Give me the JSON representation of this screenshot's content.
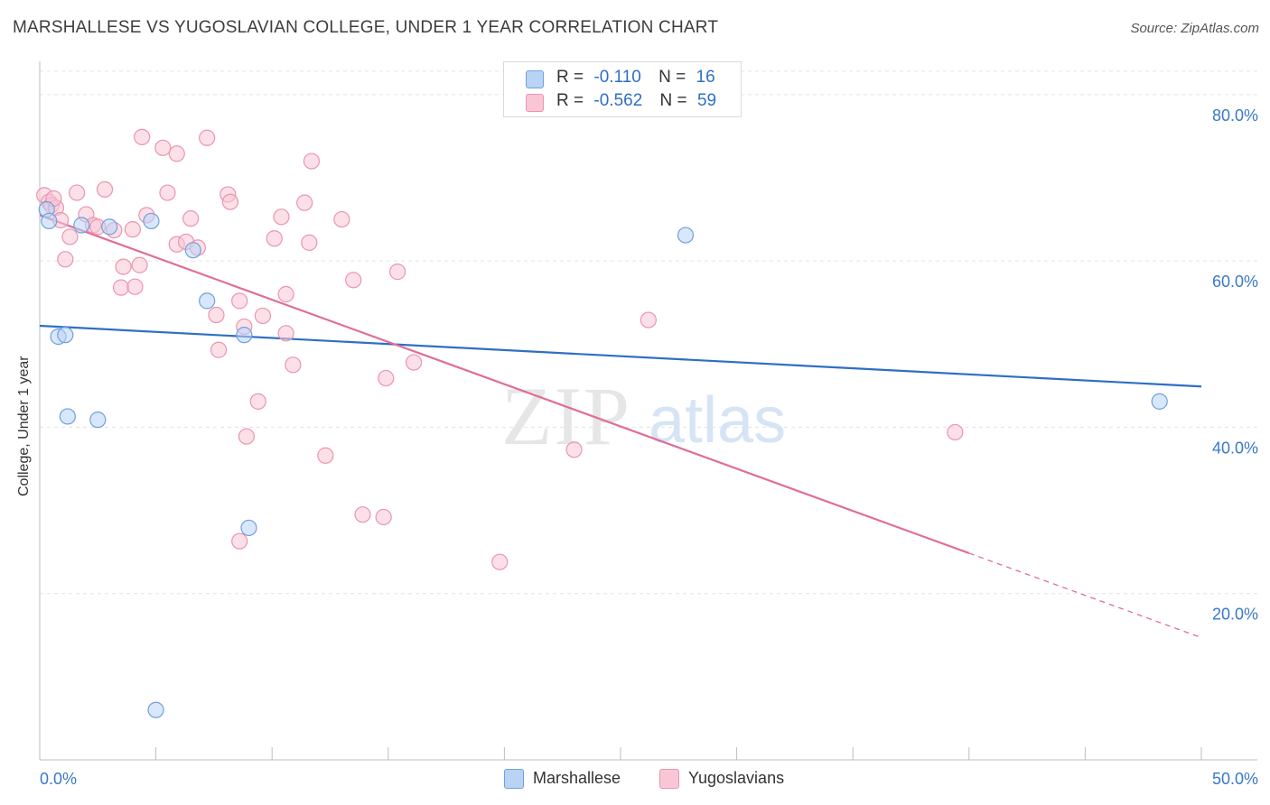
{
  "header": {
    "title": "MARSHALLESE VS YUGOSLAVIAN COLLEGE, UNDER 1 YEAR CORRELATION CHART",
    "source": "Source: ZipAtlas.com"
  },
  "watermark": {
    "zip": "ZIP",
    "atlas": "atlas"
  },
  "legend": {
    "items": [
      {
        "r_label": "R =",
        "r_value": "-0.110",
        "n_label": "N =",
        "n_value": "16"
      },
      {
        "r_label": "R =",
        "r_value": "-0.562",
        "n_label": "N =",
        "n_value": "59"
      }
    ]
  },
  "bottom_legend": {
    "series1": "Marshallese",
    "series2": "Yugoslavians"
  },
  "colors": {
    "marshallese_fill": "#b9d3f5",
    "marshallese_stroke": "#6fa0dc",
    "marshallese_line": "#2f6fc4",
    "yugoslavian_fill": "#f9c6d6",
    "yugoslavian_stroke": "#eb94b0",
    "yugoslavian_line": "#e06e96",
    "axis_label": "#3a78c9"
  },
  "chart_data": {
    "type": "scatter",
    "title": "MARSHALLESE VS YUGOSLAVIAN COLLEGE, UNDER 1 YEAR CORRELATION CHART",
    "xlabel": "",
    "ylabel": "College, Under 1 year",
    "xlim": [
      0,
      50
    ],
    "ylim": [
      0,
      84
    ],
    "x_tick_labels": [
      "0.0%",
      "50.0%"
    ],
    "y_ticks": [
      20,
      40,
      60,
      80
    ],
    "y_tick_labels": [
      "20.0%",
      "40.0%",
      "60.0%",
      "80.0%"
    ],
    "grid": true,
    "legend_position": "top-center",
    "series": [
      {
        "name": "Marshallese",
        "points": [
          [
            0.3,
            66.2
          ],
          [
            0.4,
            64.8
          ],
          [
            1.8,
            64.3
          ],
          [
            3.0,
            64.1
          ],
          [
            4.8,
            64.8
          ],
          [
            0.8,
            50.9
          ],
          [
            1.1,
            51.1
          ],
          [
            1.2,
            41.3
          ],
          [
            2.5,
            40.9
          ],
          [
            6.6,
            61.3
          ],
          [
            7.2,
            55.2
          ],
          [
            8.8,
            51.1
          ],
          [
            9.0,
            27.9
          ],
          [
            5.0,
            6.0
          ],
          [
            27.8,
            63.1
          ],
          [
            48.2,
            43.1
          ]
        ],
        "trend": {
          "x": [
            0,
            50
          ],
          "y": [
            52.2,
            44.9
          ],
          "dashed_from": null
        }
      },
      {
        "name": "Yugoslavians",
        "points": [
          [
            0.2,
            67.9
          ],
          [
            0.4,
            67.1
          ],
          [
            0.5,
            66.7
          ],
          [
            0.7,
            66.4
          ],
          [
            0.9,
            64.9
          ],
          [
            0.6,
            67.5
          ],
          [
            1.1,
            60.2
          ],
          [
            1.3,
            62.9
          ],
          [
            1.6,
            68.2
          ],
          [
            2.0,
            65.6
          ],
          [
            2.3,
            64.3
          ],
          [
            2.5,
            64.1
          ],
          [
            2.8,
            68.6
          ],
          [
            3.2,
            63.7
          ],
          [
            3.5,
            56.8
          ],
          [
            4.0,
            63.8
          ],
          [
            3.6,
            59.3
          ],
          [
            4.1,
            56.9
          ],
          [
            4.3,
            59.5
          ],
          [
            4.6,
            65.5
          ],
          [
            4.4,
            74.9
          ],
          [
            5.3,
            73.6
          ],
          [
            5.9,
            72.9
          ],
          [
            5.5,
            68.2
          ],
          [
            5.9,
            62.0
          ],
          [
            6.3,
            62.3
          ],
          [
            6.5,
            65.1
          ],
          [
            6.8,
            61.6
          ],
          [
            7.2,
            74.8
          ],
          [
            7.6,
            53.5
          ],
          [
            7.7,
            49.3
          ],
          [
            8.1,
            68.0
          ],
          [
            8.2,
            67.1
          ],
          [
            8.6,
            55.2
          ],
          [
            8.9,
            38.9
          ],
          [
            8.6,
            26.3
          ],
          [
            8.8,
            52.1
          ],
          [
            9.4,
            43.1
          ],
          [
            9.6,
            53.4
          ],
          [
            10.1,
            62.7
          ],
          [
            10.4,
            65.3
          ],
          [
            10.6,
            51.3
          ],
          [
            10.6,
            56.0
          ],
          [
            10.9,
            47.5
          ],
          [
            11.4,
            67.0
          ],
          [
            11.6,
            62.2
          ],
          [
            11.7,
            72.0
          ],
          [
            12.3,
            36.6
          ],
          [
            13.0,
            65.0
          ],
          [
            13.5,
            57.7
          ],
          [
            13.9,
            29.5
          ],
          [
            14.8,
            29.2
          ],
          [
            14.9,
            45.9
          ],
          [
            15.4,
            58.7
          ],
          [
            16.1,
            47.8
          ],
          [
            19.8,
            23.8
          ],
          [
            23.0,
            37.3
          ],
          [
            26.2,
            52.9
          ],
          [
            39.4,
            39.4
          ]
        ],
        "trend": {
          "x": [
            0,
            50
          ],
          "y": [
            65.5,
            14.7
          ],
          "dashed_from": 40
        }
      }
    ]
  }
}
